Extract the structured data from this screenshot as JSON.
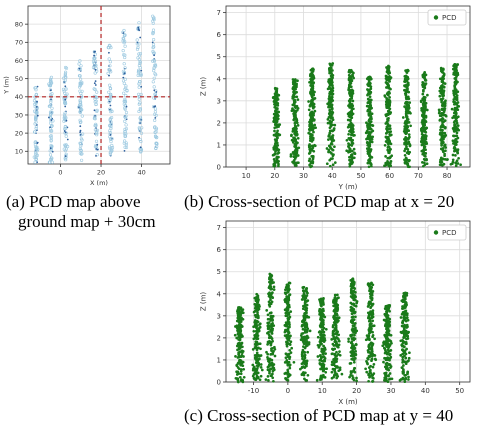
{
  "chart_data": [
    {
      "id": "a",
      "type": "scatter",
      "xlabel": "X (m)",
      "ylabel": "Y (m)",
      "xlim": [
        -16,
        54
      ],
      "ylim": [
        3,
        90
      ],
      "xticks": [
        0,
        20,
        40
      ],
      "yticks": [
        10,
        20,
        30,
        40,
        50,
        60,
        70,
        80
      ],
      "grid": true,
      "crosshair": {
        "x": 20,
        "y": 40,
        "color": "#b22222",
        "style": "dashed"
      },
      "point_colors": [
        "#9ecae1",
        "#2b5d9c"
      ],
      "rows": 9
    },
    {
      "id": "b",
      "type": "scatter",
      "xlabel": "Y (m)",
      "ylabel": "Z (m)",
      "xlim": [
        3,
        88
      ],
      "ylim": [
        0,
        7.3
      ],
      "xticks": [
        10,
        20,
        30,
        40,
        50,
        60,
        70,
        80
      ],
      "yticks": [
        0,
        1,
        2,
        3,
        4,
        5,
        6,
        7
      ],
      "grid": true,
      "legend": {
        "label": "PCD",
        "placement": "top-right"
      },
      "color": "#1a7a1a",
      "clusters": [
        {
          "center": 20.5,
          "peak": 3.6
        },
        {
          "center": 27,
          "peak": 4.0
        },
        {
          "center": 33,
          "peak": 4.5
        },
        {
          "center": 39.5,
          "peak": 4.7
        },
        {
          "center": 46.5,
          "peak": 4.4
        },
        {
          "center": 53,
          "peak": 4.1
        },
        {
          "center": 59.5,
          "peak": 4.6
        },
        {
          "center": 66,
          "peak": 4.4
        },
        {
          "center": 72,
          "peak": 4.3
        },
        {
          "center": 78.5,
          "peak": 4.5
        },
        {
          "center": 83,
          "peak": 4.7
        }
      ]
    },
    {
      "id": "c",
      "type": "scatter",
      "xlabel": "X (m)",
      "ylabel": "Z (m)",
      "xlim": [
        -18,
        53
      ],
      "ylim": [
        0,
        7.3
      ],
      "xticks": [
        -10,
        0,
        10,
        20,
        30,
        40,
        50
      ],
      "yticks": [
        0,
        1,
        2,
        3,
        4,
        5,
        6,
        7
      ],
      "grid": true,
      "legend": {
        "label": "PCD",
        "placement": "top-right"
      },
      "color": "#1a7a1a",
      "clusters": [
        {
          "center": -14,
          "peak": 3.4
        },
        {
          "center": -9,
          "peak": 4.0
        },
        {
          "center": -5,
          "peak": 4.9
        },
        {
          "center": 0,
          "peak": 4.5
        },
        {
          "center": 5,
          "peak": 4.3
        },
        {
          "center": 10,
          "peak": 3.8
        },
        {
          "center": 14,
          "peak": 4.0
        },
        {
          "center": 19,
          "peak": 4.7
        },
        {
          "center": 24,
          "peak": 4.5
        },
        {
          "center": 29,
          "peak": 3.5
        },
        {
          "center": 34,
          "peak": 4.1
        }
      ]
    }
  ],
  "captions": {
    "a_line1": "(a) PCD map above",
    "a_line2": "ground map + 30cm",
    "b": "(b) Cross-section of PCD map at x = 20",
    "c": "(c) Cross-section of PCD map at y = 40"
  }
}
